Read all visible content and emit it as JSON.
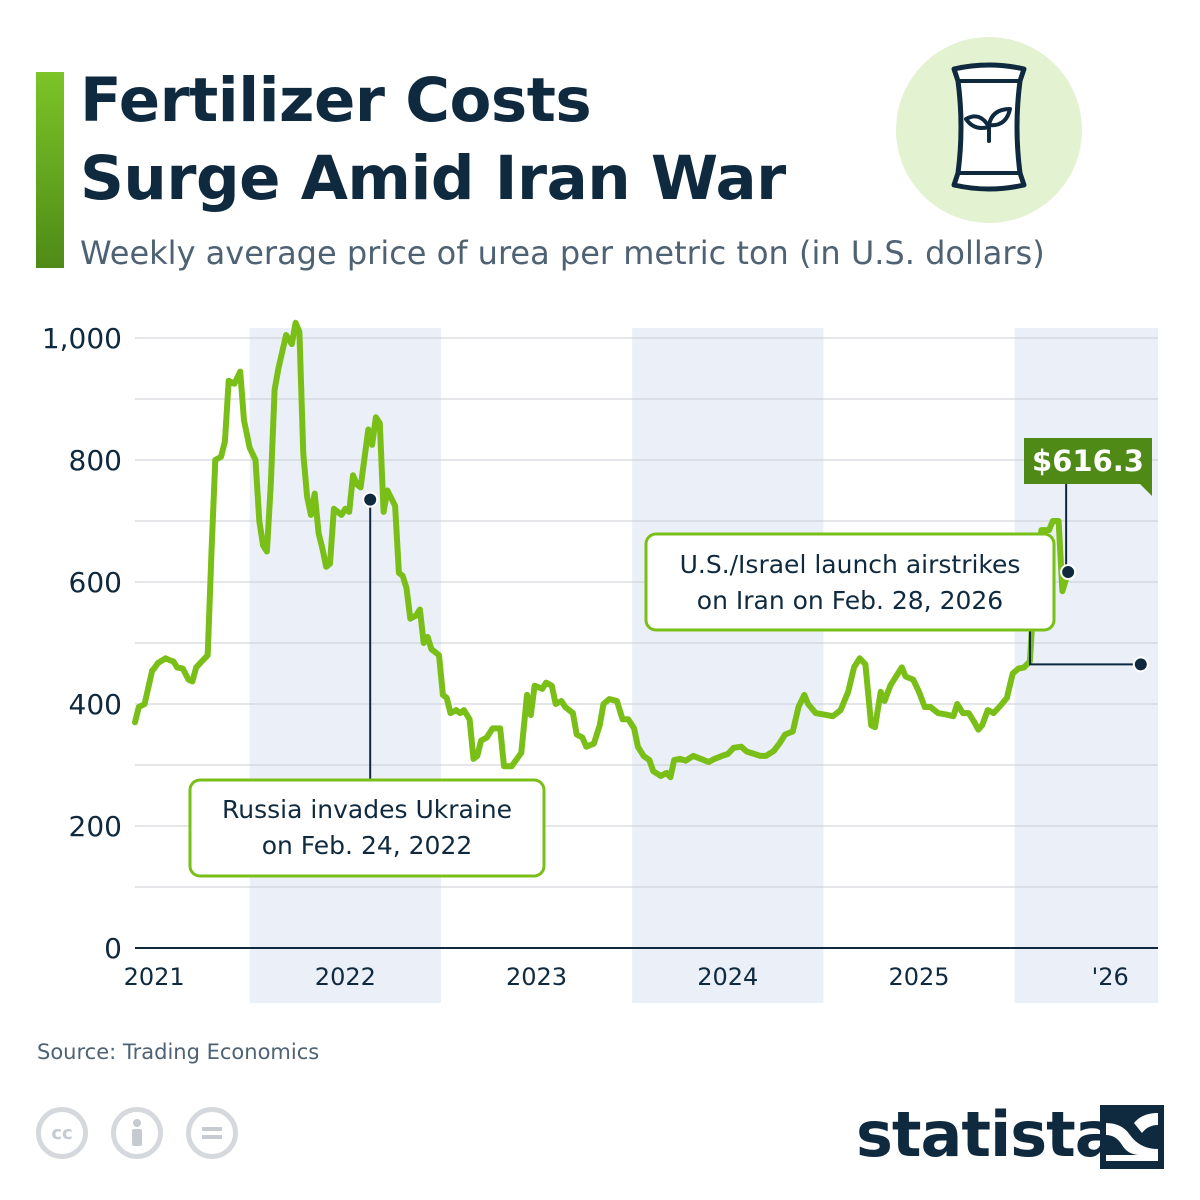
{
  "header": {
    "title_line1": "Fertilizer Costs",
    "title_line2": "Surge Amid Iran War",
    "subtitle": "Weekly average price of urea per metric ton (in U.S. dollars)",
    "icon": "fertilizer-bag-icon"
  },
  "colors": {
    "line": "#79bf17",
    "line_dark": "#4f8a17",
    "text": "#0f2a3f",
    "band": "#ebeff7",
    "icon_bg": "#e3f2d1"
  },
  "chart_data": {
    "type": "line",
    "title": "Fertilizer Costs Surge Amid Iran War",
    "subtitle": "Weekly average price of urea per metric ton (in U.S. dollars)",
    "ylim": [
      0,
      1000
    ],
    "yticks": [
      0,
      200,
      400,
      600,
      800,
      1000
    ],
    "ytick_labels": [
      "0",
      "200",
      "400",
      "600",
      "800",
      "1,000"
    ],
    "xlim": [
      2020.9,
      2026.25
    ],
    "year_labels": [
      {
        "label": "2021",
        "x": 2021.0
      },
      {
        "label": "2022",
        "x": 2022.0
      },
      {
        "label": "2023",
        "x": 2023.0
      },
      {
        "label": "2024",
        "x": 2024.0
      },
      {
        "label": "2025",
        "x": 2025.0
      },
      {
        "label": "'26",
        "x": 2026.0
      }
    ],
    "shaded_years": [
      [
        2021.5,
        2022.5
      ],
      [
        2023.5,
        2024.5
      ],
      [
        2025.5,
        2026.25
      ]
    ],
    "grid": true,
    "series": [
      {
        "points": [
          [
            2020.9,
            370
          ],
          [
            2020.92,
            395
          ],
          [
            2020.95,
            400
          ],
          [
            2020.99,
            455
          ],
          [
            2021.0,
            458
          ],
          [
            2021.02,
            467
          ],
          [
            2021.06,
            475
          ],
          [
            2021.08,
            472
          ],
          [
            2021.1,
            470
          ],
          [
            2021.12,
            460
          ],
          [
            2021.15,
            458
          ],
          [
            2021.18,
            440
          ],
          [
            2021.2,
            437
          ],
          [
            2021.22,
            460
          ],
          [
            2021.25,
            470
          ],
          [
            2021.28,
            480
          ],
          [
            2021.3,
            650
          ],
          [
            2021.32,
            800
          ],
          [
            2021.35,
            805
          ],
          [
            2021.37,
            830
          ],
          [
            2021.39,
            930
          ],
          [
            2021.42,
            925
          ],
          [
            2021.45,
            945
          ],
          [
            2021.47,
            865
          ],
          [
            2021.5,
            820
          ],
          [
            2021.53,
            800
          ],
          [
            2021.55,
            700
          ],
          [
            2021.57,
            660
          ],
          [
            2021.59,
            650
          ],
          [
            2021.61,
            760
          ],
          [
            2021.63,
            915
          ],
          [
            2021.65,
            950
          ],
          [
            2021.69,
            1005
          ],
          [
            2021.72,
            990
          ],
          [
            2021.74,
            1025
          ],
          [
            2021.76,
            1010
          ],
          [
            2021.78,
            810
          ],
          [
            2021.8,
            740
          ],
          [
            2021.82,
            710
          ],
          [
            2021.84,
            745
          ],
          [
            2021.86,
            680
          ],
          [
            2021.88,
            655
          ],
          [
            2021.9,
            625
          ],
          [
            2021.92,
            630
          ],
          [
            2021.94,
            720
          ],
          [
            2021.98,
            710
          ],
          [
            2022.0,
            720
          ],
          [
            2022.02,
            715
          ],
          [
            2022.04,
            775
          ],
          [
            2022.06,
            760
          ],
          [
            2022.08,
            755
          ],
          [
            2022.12,
            850
          ],
          [
            2022.14,
            825
          ],
          [
            2022.16,
            870
          ],
          [
            2022.18,
            860
          ],
          [
            2022.2,
            715
          ],
          [
            2022.22,
            750
          ],
          [
            2022.26,
            725
          ],
          [
            2022.28,
            615
          ],
          [
            2022.3,
            610
          ],
          [
            2022.32,
            590
          ],
          [
            2022.34,
            540
          ],
          [
            2022.37,
            545
          ],
          [
            2022.39,
            555
          ],
          [
            2022.41,
            500
          ],
          [
            2022.43,
            510
          ],
          [
            2022.45,
            490
          ],
          [
            2022.49,
            480
          ],
          [
            2022.51,
            415
          ],
          [
            2022.53,
            410
          ],
          [
            2022.55,
            385
          ],
          [
            2022.58,
            390
          ],
          [
            2022.6,
            385
          ],
          [
            2022.62,
            390
          ],
          [
            2022.65,
            375
          ],
          [
            2022.67,
            310
          ],
          [
            2022.69,
            315
          ],
          [
            2022.71,
            340
          ],
          [
            2022.74,
            345
          ],
          [
            2022.77,
            360
          ],
          [
            2022.81,
            360
          ],
          [
            2022.83,
            298
          ],
          [
            2022.87,
            298
          ],
          [
            2022.92,
            320
          ],
          [
            2022.95,
            415
          ],
          [
            2022.97,
            382
          ],
          [
            2022.99,
            430
          ],
          [
            2023.03,
            425
          ],
          [
            2023.05,
            435
          ],
          [
            2023.08,
            430
          ],
          [
            2023.1,
            400
          ],
          [
            2023.13,
            405
          ],
          [
            2023.15,
            395
          ],
          [
            2023.19,
            385
          ],
          [
            2023.21,
            350
          ],
          [
            2023.24,
            345
          ],
          [
            2023.26,
            330
          ],
          [
            2023.3,
            335
          ],
          [
            2023.33,
            365
          ],
          [
            2023.35,
            400
          ],
          [
            2023.38,
            408
          ],
          [
            2023.42,
            405
          ],
          [
            2023.45,
            375
          ],
          [
            2023.48,
            375
          ],
          [
            2023.51,
            360
          ],
          [
            2023.53,
            330
          ],
          [
            2023.56,
            315
          ],
          [
            2023.59,
            308
          ],
          [
            2023.61,
            290
          ],
          [
            2023.65,
            282
          ],
          [
            2023.68,
            287
          ],
          [
            2023.7,
            280
          ],
          [
            2023.72,
            308
          ],
          [
            2023.75,
            310
          ],
          [
            2023.78,
            307
          ],
          [
            2023.82,
            315
          ],
          [
            2023.86,
            310
          ],
          [
            2023.9,
            305
          ],
          [
            2023.93,
            310
          ],
          [
            2023.97,
            315
          ],
          [
            2024.0,
            318
          ],
          [
            2024.03,
            328
          ],
          [
            2024.07,
            330
          ],
          [
            2024.1,
            322
          ],
          [
            2024.14,
            318
          ],
          [
            2024.17,
            315
          ],
          [
            2024.2,
            315
          ],
          [
            2024.24,
            323
          ],
          [
            2024.27,
            335
          ],
          [
            2024.3,
            350
          ],
          [
            2024.34,
            355
          ],
          [
            2024.37,
            395
          ],
          [
            2024.4,
            415
          ],
          [
            2024.42,
            400
          ],
          [
            2024.46,
            385
          ],
          [
            2024.5,
            383
          ],
          [
            2024.55,
            380
          ],
          [
            2024.59,
            390
          ],
          [
            2024.63,
            420
          ],
          [
            2024.66,
            460
          ],
          [
            2024.69,
            475
          ],
          [
            2024.72,
            465
          ],
          [
            2024.75,
            365
          ],
          [
            2024.77,
            362
          ],
          [
            2024.8,
            420
          ],
          [
            2024.82,
            405
          ],
          [
            2024.85,
            430
          ],
          [
            2024.87,
            440
          ],
          [
            2024.91,
            460
          ],
          [
            2024.93,
            445
          ],
          [
            2024.97,
            440
          ],
          [
            2025.0,
            420
          ],
          [
            2025.03,
            395
          ],
          [
            2025.06,
            395
          ],
          [
            2025.1,
            385
          ],
          [
            2025.14,
            383
          ],
          [
            2025.18,
            380
          ],
          [
            2025.2,
            400
          ],
          [
            2025.23,
            385
          ],
          [
            2025.26,
            385
          ],
          [
            2025.29,
            370
          ],
          [
            2025.31,
            358
          ],
          [
            2025.33,
            365
          ],
          [
            2025.36,
            390
          ],
          [
            2025.39,
            385
          ],
          [
            2025.42,
            395
          ],
          [
            2025.46,
            410
          ],
          [
            2025.49,
            450
          ],
          [
            2025.52,
            458
          ],
          [
            2025.55,
            460
          ],
          [
            2025.58,
            470
          ],
          [
            2025.6,
            575
          ],
          [
            2025.62,
            610
          ],
          [
            2025.64,
            685
          ],
          [
            2025.68,
            685
          ],
          [
            2025.7,
            700
          ],
          [
            2025.73,
            700
          ],
          [
            2025.75,
            585
          ],
          [
            2025.78,
            616.3
          ]
        ]
      }
    ],
    "end_label": "$616.3",
    "annotations": [
      {
        "text_line1": "Russia invades Ukraine",
        "text_line2": "on Feb. 24, 2022",
        "x": 2022.13,
        "y": 735
      },
      {
        "text_line1": "U.S./Israel launch airstrikes",
        "text_line2": "on Iran on Feb. 28, 2026",
        "x": 2026.16,
        "y": 465
      }
    ]
  },
  "footer": {
    "source": "Source: Trading Economics",
    "brand": "statista",
    "license_icons": [
      "cc-icon",
      "attribution-icon",
      "no-derivatives-icon"
    ]
  }
}
